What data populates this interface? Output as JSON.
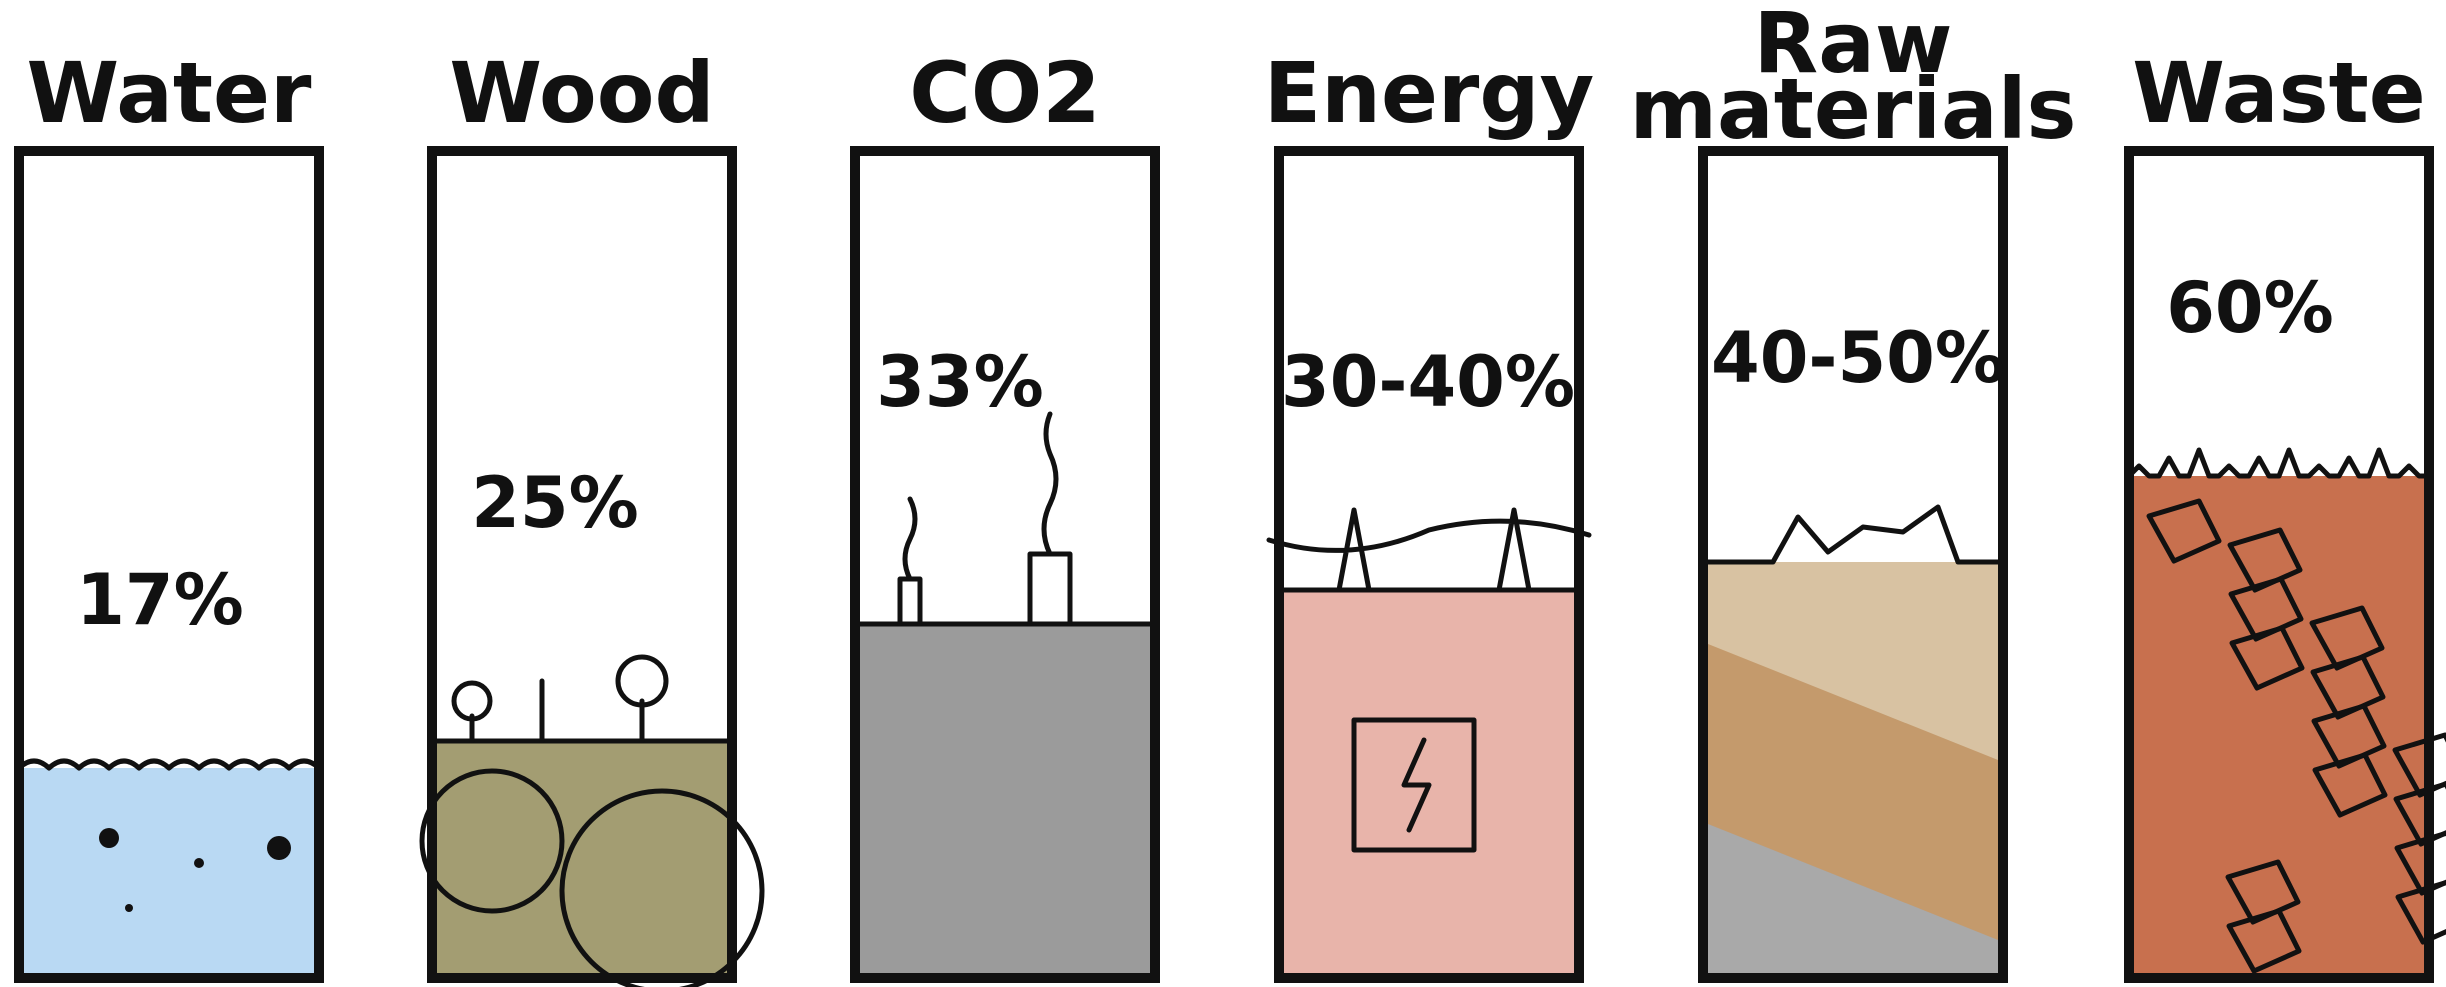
{
  "panels": [
    {
      "label": "Water",
      "value": "17%"
    },
    {
      "label": "Wood",
      "value": "25%"
    },
    {
      "label": "CO2",
      "value": "33%"
    },
    {
      "label": "Energy",
      "value": "30-40%"
    },
    {
      "label": [
        "Raw",
        "materials"
      ],
      "value": "40-50%"
    },
    {
      "label": "Waste",
      "value": "60%"
    }
  ]
}
